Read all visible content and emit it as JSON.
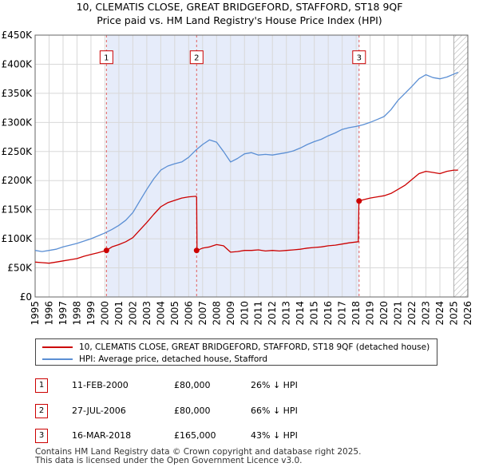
{
  "chart_data": {
    "type": "line",
    "title": "10, CLEMATIS CLOSE, GREAT BRIDGEFORD, STAFFORD, ST18 9QF",
    "subtitle": "Price paid vs. HM Land Registry's House Price Index (HPI)",
    "x_range": [
      1995,
      2026
    ],
    "ylim": [
      0,
      450000
    ],
    "y_ticks": [
      0,
      50000,
      100000,
      150000,
      200000,
      250000,
      300000,
      350000,
      400000,
      450000
    ],
    "y_tick_labels": [
      "£0",
      "£50K",
      "£100K",
      "£150K",
      "£200K",
      "£250K",
      "£300K",
      "£350K",
      "£400K",
      "£450K"
    ],
    "x_ticks": [
      1995,
      1996,
      1997,
      1998,
      1999,
      2000,
      2001,
      2002,
      2003,
      2004,
      2005,
      2006,
      2007,
      2008,
      2009,
      2010,
      2011,
      2012,
      2013,
      2014,
      2015,
      2016,
      2017,
      2018,
      2019,
      2020,
      2021,
      2022,
      2023,
      2024,
      2025,
      2026
    ],
    "grid": true,
    "future_hatch_from": 2025.0,
    "series": [
      {
        "name": "10, CLEMATIS CLOSE, GREAT BRIDGEFORD, STAFFORD, ST18 9QF (detached house)",
        "color": "#cc0000",
        "x": [
          1995.0,
          1995.5,
          1996.0,
          1996.5,
          1997.0,
          1997.5,
          1998.0,
          1998.5,
          1999.0,
          1999.5,
          2000.1,
          2000.5,
          2001.0,
          2001.5,
          2002.0,
          2002.5,
          2003.0,
          2003.5,
          2004.0,
          2004.5,
          2005.0,
          2005.5,
          2006.0,
          2006.5,
          2006.57,
          2006.6,
          2007.0,
          2007.5,
          2008.0,
          2008.5,
          2009.0,
          2009.5,
          2010.0,
          2010.5,
          2011.0,
          2011.5,
          2012.0,
          2012.5,
          2013.0,
          2013.5,
          2014.0,
          2014.5,
          2015.0,
          2015.5,
          2016.0,
          2016.5,
          2017.0,
          2017.5,
          2018.15,
          2018.2,
          2018.5,
          2019.0,
          2019.5,
          2020.0,
          2020.5,
          2021.0,
          2021.5,
          2022.0,
          2022.5,
          2023.0,
          2023.5,
          2024.0,
          2024.5,
          2025.0,
          2025.3
        ],
        "values": [
          60000,
          59000,
          58000,
          60000,
          62000,
          64000,
          66000,
          70000,
          73000,
          76000,
          80000,
          86000,
          90000,
          95000,
          102000,
          115000,
          128000,
          142000,
          155000,
          162000,
          166000,
          170000,
          172000,
          173000,
          172000,
          80000,
          84000,
          86000,
          90000,
          88000,
          77000,
          78000,
          80000,
          80000,
          81000,
          79000,
          80000,
          79000,
          80000,
          81000,
          82000,
          84000,
          85000,
          86000,
          88000,
          89000,
          91000,
          93000,
          95000,
          165000,
          167000,
          170000,
          172000,
          174000,
          178000,
          185000,
          192000,
          202000,
          212000,
          216000,
          214000,
          212000,
          216000,
          218000,
          218000
        ]
      },
      {
        "name": "HPI: Average price, detached house, Stafford",
        "color": "#5b8fd4",
        "x": [
          1995.0,
          1995.5,
          1996.0,
          1996.5,
          1997.0,
          1997.5,
          1998.0,
          1998.5,
          1999.0,
          1999.5,
          2000.0,
          2000.5,
          2001.0,
          2001.5,
          2002.0,
          2002.5,
          2003.0,
          2003.5,
          2004.0,
          2004.5,
          2005.0,
          2005.5,
          2006.0,
          2006.5,
          2007.0,
          2007.5,
          2008.0,
          2008.5,
          2009.0,
          2009.5,
          2010.0,
          2010.5,
          2011.0,
          2011.5,
          2012.0,
          2012.5,
          2013.0,
          2013.5,
          2014.0,
          2014.5,
          2015.0,
          2015.5,
          2016.0,
          2016.5,
          2017.0,
          2017.5,
          2018.0,
          2018.5,
          2019.0,
          2019.5,
          2020.0,
          2020.5,
          2021.0,
          2021.5,
          2022.0,
          2022.5,
          2023.0,
          2023.5,
          2024.0,
          2024.5,
          2025.0,
          2025.3
        ],
        "values": [
          80000,
          78000,
          80000,
          82000,
          86000,
          89000,
          92000,
          96000,
          100000,
          105000,
          110000,
          116000,
          123000,
          132000,
          145000,
          165000,
          185000,
          203000,
          218000,
          225000,
          229000,
          232000,
          240000,
          252000,
          262000,
          270000,
          266000,
          250000,
          232000,
          238000,
          246000,
          248000,
          244000,
          245000,
          244000,
          246000,
          248000,
          251000,
          256000,
          262000,
          267000,
          271000,
          277000,
          282000,
          288000,
          291000,
          293000,
          296000,
          300000,
          305000,
          310000,
          322000,
          338000,
          350000,
          362000,
          375000,
          382000,
          377000,
          375000,
          378000,
          383000,
          386000
        ]
      }
    ],
    "sales": [
      {
        "num": "1",
        "x": 2000.11,
        "price": 80000
      },
      {
        "num": "2",
        "x": 2006.57,
        "price": 80000
      },
      {
        "num": "3",
        "x": 2018.21,
        "price": 165000
      }
    ],
    "sale_box_value": 412000
  },
  "legend": {
    "property_label": "10, CLEMATIS CLOSE, GREAT BRIDGEFORD, STAFFORD, ST18 9QF (detached house)",
    "hpi_label": "HPI: Average price, detached house, Stafford",
    "property_color": "#cc0000",
    "hpi_color": "#5b8fd4"
  },
  "sales_table": [
    {
      "num": "1",
      "date": "11-FEB-2000",
      "price": "£80,000",
      "hpi": "26% ↓ HPI"
    },
    {
      "num": "2",
      "date": "27-JUL-2006",
      "price": "£80,000",
      "hpi": "66% ↓ HPI"
    },
    {
      "num": "3",
      "date": "16-MAR-2018",
      "price": "£165,000",
      "hpi": "43% ↓ HPI"
    }
  ],
  "footer": {
    "line1": "Contains HM Land Registry data © Crown copyright and database right 2025.",
    "line2": "This data is licensed under the Open Government Licence v3.0."
  }
}
